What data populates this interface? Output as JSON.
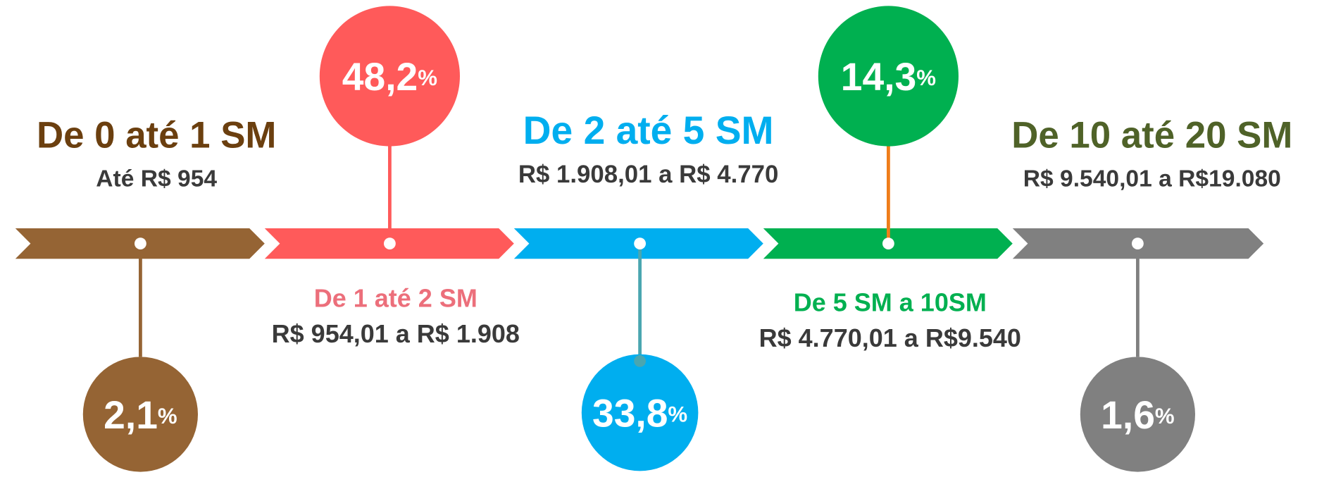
{
  "segments": [
    {
      "title": "De 0 até 1 SM",
      "range": "Até R$ 954",
      "percent": "2,1",
      "unit": "%",
      "color": "#956434",
      "title_color": "#6b3f0f",
      "stem_color": "#956434"
    },
    {
      "title": "De 1 até 2 SM",
      "range": "R$ 954,01 a R$ 1.908",
      "percent": "48,2",
      "unit": "%",
      "color": "#ff5a5a",
      "title_color": "#ec6f7b",
      "stem_color": "#ff5a5a"
    },
    {
      "title": "De 2 até 5 SM",
      "range": "R$ 1.908,01 a R$ 4.770",
      "percent": "33,8",
      "unit": "%",
      "color": "#00aeef",
      "title_color": "#00aeef",
      "stem_color": "#4aa6b0"
    },
    {
      "title": "De 5 SM a 10SM",
      "range": "R$ 4.770,01 a R$9.540",
      "percent": "14,3",
      "unit": "%",
      "color": "#00b050",
      "title_color": "#00b050",
      "stem_color": "#ef7d1a"
    },
    {
      "title": "De 10 até 20 SM",
      "range": "R$ 9.540,01 a R$19.080",
      "percent": "1,6",
      "unit": "%",
      "color": "#808080",
      "title_color": "#4f6228",
      "stem_color": "#808080"
    }
  ]
}
